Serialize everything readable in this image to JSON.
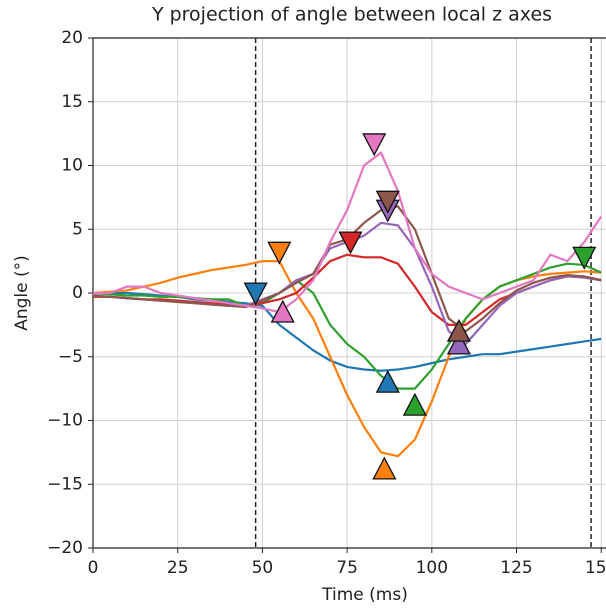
{
  "chart_data": {
    "type": "line",
    "title": "Y projection of angle between local z axes",
    "x_label": "Time (ms)",
    "y_label": "Angle (°)",
    "x": [
      0,
      5,
      10,
      15,
      20,
      25,
      30,
      35,
      40,
      45,
      50,
      55,
      60,
      65,
      70,
      75,
      80,
      85,
      90,
      95,
      100,
      105,
      110,
      115,
      120,
      125,
      130,
      135,
      140,
      145,
      150
    ],
    "series": [
      {
        "color": "#1f77b4",
        "values": [
          0,
          0,
          0,
          -0.1,
          -0.2,
          -0.3,
          -0.5,
          -0.6,
          -0.7,
          -0.8,
          -1,
          -2.5,
          -3.5,
          -4.5,
          -5.3,
          -5.8,
          -6,
          -6.1,
          -6,
          -5.8,
          -5.5,
          -5.2,
          -5,
          -4.8,
          -4.8,
          -4.6,
          -4.4,
          -4.2,
          -4,
          -3.8,
          -3.6
        ],
        "markers": [
          {
            "x": 48,
            "y": 0,
            "shape": "down"
          },
          {
            "x": 87,
            "y": -7,
            "shape": "up"
          }
        ]
      },
      {
        "color": "#ff7f0e",
        "values": [
          0,
          0.1,
          0.2,
          0.5,
          0.8,
          1.2,
          1.5,
          1.8,
          2,
          2.2,
          2.5,
          2.5,
          0,
          -2,
          -5,
          -8,
          -10.5,
          -12.5,
          -12.8,
          -11.5,
          -8.5,
          -5,
          -2,
          -0.5,
          0.5,
          1,
          1.3,
          1.5,
          1.6,
          1.7,
          1.6
        ],
        "markers": [
          {
            "x": 55,
            "y": 3.2,
            "shape": "down"
          },
          {
            "x": 86,
            "y": -13.8,
            "shape": "up"
          }
        ]
      },
      {
        "color": "#2ca02c",
        "values": [
          0,
          -0.1,
          -0.2,
          -0.2,
          -0.3,
          -0.3,
          -0.4,
          -0.5,
          -0.5,
          -1,
          -0.8,
          0,
          1,
          0,
          -2.5,
          -4,
          -5,
          -6.5,
          -7.5,
          -7.5,
          -6,
          -4,
          -2,
          -0.5,
          0.5,
          1,
          1.5,
          2,
          2.3,
          2.2,
          1.6
        ],
        "markers": [
          {
            "x": 145,
            "y": 2.8,
            "shape": "down"
          },
          {
            "x": 95,
            "y": -8.8,
            "shape": "up"
          }
        ]
      },
      {
        "color": "#d62728",
        "values": [
          -0.3,
          -0.3,
          -0.4,
          -0.5,
          -0.5,
          -0.6,
          -0.7,
          -0.8,
          -0.9,
          -1,
          -0.8,
          -0.5,
          0,
          1.2,
          2.5,
          3,
          2.8,
          2.8,
          2.3,
          0.5,
          -1.5,
          -2.5,
          -2.5,
          -1.5,
          -0.5,
          0,
          0.5,
          1,
          1.3,
          1.3,
          1
        ],
        "markers": [
          {
            "x": 76,
            "y": 4,
            "shape": "down"
          }
        ]
      },
      {
        "color": "#9467bd",
        "values": [
          -0.2,
          -0.3,
          -0.4,
          -0.5,
          -0.6,
          -0.7,
          -0.8,
          -0.9,
          -1,
          -1,
          -0.5,
          0,
          1,
          1.5,
          3.5,
          4,
          4.5,
          5.5,
          5.3,
          3.5,
          0.5,
          -3,
          -4,
          -2.5,
          -1,
          0,
          0.5,
          1,
          1.3,
          1.2,
          1
        ],
        "markers": [
          {
            "x": 87,
            "y": 6.5,
            "shape": "down"
          },
          {
            "x": 108,
            "y": -4,
            "shape": "up"
          }
        ]
      },
      {
        "color": "#8c564b",
        "values": [
          -0.2,
          -0.3,
          -0.4,
          -0.5,
          -0.6,
          -0.7,
          -0.8,
          -0.9,
          -1,
          -1.1,
          -0.6,
          0,
          0.8,
          1.5,
          3.8,
          4.2,
          5.5,
          6.5,
          6.8,
          5,
          1.5,
          -2,
          -3,
          -2,
          -0.8,
          0.2,
          0.8,
          1.2,
          1.4,
          1.3,
          1
        ],
        "markers": [
          {
            "x": 87,
            "y": 7.2,
            "shape": "down"
          },
          {
            "x": 108,
            "y": -3,
            "shape": "up"
          }
        ]
      },
      {
        "color": "#e377c2",
        "values": [
          0,
          0,
          0.5,
          0.5,
          0,
          -0.2,
          -0.4,
          -0.6,
          -0.8,
          -1,
          -1.2,
          -1.5,
          -0.5,
          1,
          4,
          6.5,
          10,
          11,
          8,
          3.5,
          1.5,
          0.5,
          0,
          -0.5,
          0,
          0.5,
          1,
          3,
          2.5,
          4,
          6
        ],
        "markers": [
          {
            "x": 83,
            "y": 11.7,
            "shape": "down"
          },
          {
            "x": 56,
            "y": -1.5,
            "shape": "up"
          }
        ]
      }
    ],
    "vlines": [
      48,
      147
    ],
    "xlim": [
      0,
      152
    ],
    "xticks": [
      0,
      25,
      50,
      75,
      100,
      125,
      150
    ],
    "ylim": [
      -20,
      20
    ],
    "yticks": [
      {
        "value": -20,
        "label": "−20"
      },
      {
        "value": -15,
        "label": "−15"
      },
      {
        "value": -10,
        "label": "−10"
      },
      {
        "value": -5,
        "label": "−5"
      },
      0,
      5,
      10,
      15,
      20
    ],
    "grid": true
  }
}
